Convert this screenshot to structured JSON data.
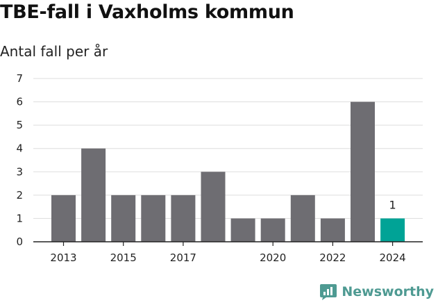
{
  "title": "TBE-fall i Vaxholms kommun",
  "subtitle": "Antal fall per år",
  "brand": {
    "name": "Newsworthy",
    "icon": "newsworthy-logo-icon"
  },
  "colors": {
    "bar": "#6e6d72",
    "highlight": "#00a396",
    "grid": "#dddddd",
    "axis": "#222222",
    "brand": "#4e9a92"
  },
  "chart_data": {
    "type": "bar",
    "title": "TBE-fall i Vaxholms kommun",
    "subtitle": "Antal fall per år",
    "xlabel": "",
    "ylabel": "",
    "categories": [
      "2013",
      "2014",
      "2015",
      "2016",
      "2017",
      "2018",
      "2019",
      "2020",
      "2021",
      "2022",
      "2023",
      "2024"
    ],
    "values": [
      2,
      4,
      2,
      2,
      2,
      3,
      1,
      1,
      2,
      1,
      6,
      1
    ],
    "x_tick_labels": [
      "2013",
      "2015",
      "2017",
      "2020",
      "2022",
      "2024"
    ],
    "y_ticks": [
      0,
      1,
      2,
      3,
      4,
      5,
      6,
      7
    ],
    "ylim": [
      0,
      7
    ],
    "grid": true,
    "highlight_category": "2024",
    "data_labels": [
      {
        "category": "2024",
        "text": "1"
      }
    ]
  }
}
